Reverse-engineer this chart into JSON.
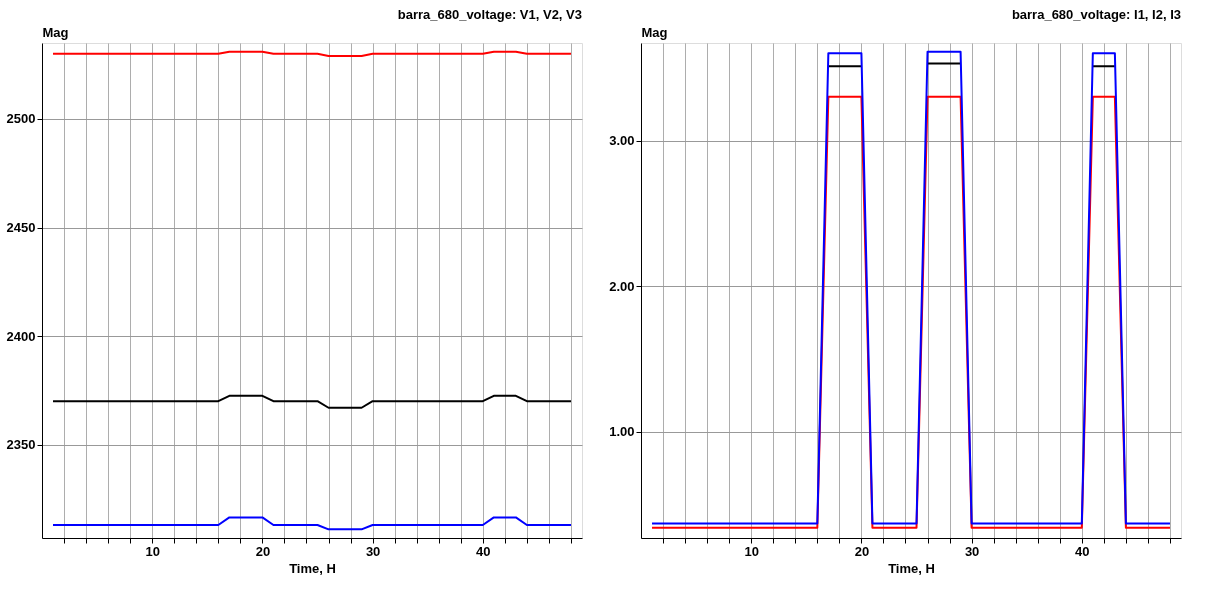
{
  "chart_data": [
    {
      "type": "line",
      "title": "barra_680_voltage:  V1,  V2,  V3",
      "ylabel": "Mag",
      "xlabel": "Time, H",
      "x": [
        1,
        16,
        17,
        20,
        21,
        25,
        26,
        29,
        30,
        40,
        41,
        43,
        44,
        48
      ],
      "series": [
        {
          "color": "#ff0000",
          "values": [
            2530,
            2530,
            2531,
            2531,
            2530,
            2530,
            2529,
            2529,
            2530,
            2530,
            2531,
            2531,
            2530,
            2530
          ]
        },
        {
          "color": "#000000",
          "values": [
            2370,
            2370,
            2372.5,
            2372.5,
            2370,
            2370,
            2367,
            2367,
            2370,
            2370,
            2372.5,
            2372.5,
            2370,
            2370
          ]
        },
        {
          "color": "#0000ff",
          "values": [
            2313,
            2313,
            2316.5,
            2316.5,
            2313,
            2313,
            2311,
            2311,
            2313,
            2313,
            2316.5,
            2316.5,
            2313,
            2313
          ]
        }
      ],
      "xlim": [
        0,
        49
      ],
      "ylim": [
        2307,
        2535
      ],
      "xticks": [
        {
          "value": 2,
          "label": null
        },
        {
          "value": 4,
          "label": null
        },
        {
          "value": 6,
          "label": null
        },
        {
          "value": 8,
          "label": null
        },
        10,
        {
          "value": 12,
          "label": null
        },
        {
          "value": 14,
          "label": null
        },
        {
          "value": 16,
          "label": null
        },
        {
          "value": 18,
          "label": null
        },
        20,
        {
          "value": 22,
          "label": null
        },
        {
          "value": 24,
          "label": null
        },
        {
          "value": 26,
          "label": null
        },
        {
          "value": 28,
          "label": null
        },
        30,
        {
          "value": 32,
          "label": null
        },
        {
          "value": 34,
          "label": null
        },
        {
          "value": 36,
          "label": null
        },
        {
          "value": 38,
          "label": null
        },
        40,
        {
          "value": 42,
          "label": null
        },
        {
          "value": 44,
          "label": null
        },
        {
          "value": 46,
          "label": null
        },
        {
          "value": 48,
          "label": null
        }
      ],
      "yticks": [
        2350,
        2400,
        2450,
        2500
      ],
      "grid": true
    },
    {
      "type": "line",
      "title": "barra_680_voltage:  I1,  I2,  I3",
      "ylabel": "Mag",
      "xlabel": "Time, H",
      "x": [
        1,
        16,
        17,
        20,
        21,
        25,
        26,
        29,
        30,
        40,
        41,
        43,
        44,
        48
      ],
      "series": [
        {
          "color": "#ff0000",
          "values": [
            0.34,
            0.34,
            3.3,
            3.3,
            0.34,
            0.34,
            3.3,
            3.3,
            0.34,
            0.34,
            3.3,
            3.3,
            0.34,
            0.34
          ]
        },
        {
          "color": "#000000",
          "values": [
            null,
            null,
            3.51,
            3.51,
            null,
            null,
            3.53,
            3.53,
            null,
            null,
            3.51,
            3.51,
            null,
            null
          ]
        },
        {
          "color": "#0000ff",
          "values": [
            0.37,
            0.37,
            3.6,
            3.6,
            0.37,
            0.37,
            3.61,
            3.61,
            0.37,
            0.37,
            3.6,
            3.6,
            0.37,
            0.37
          ]
        }
      ],
      "xlim": [
        0,
        49
      ],
      "ylim": [
        0.27,
        3.67
      ],
      "xticks": [
        {
          "value": 2,
          "label": null
        },
        {
          "value": 4,
          "label": null
        },
        {
          "value": 6,
          "label": null
        },
        {
          "value": 8,
          "label": null
        },
        10,
        {
          "value": 12,
          "label": null
        },
        {
          "value": 14,
          "label": null
        },
        {
          "value": 16,
          "label": null
        },
        {
          "value": 18,
          "label": null
        },
        20,
        {
          "value": 22,
          "label": null
        },
        {
          "value": 24,
          "label": null
        },
        {
          "value": 26,
          "label": null
        },
        {
          "value": 28,
          "label": null
        },
        30,
        {
          "value": 32,
          "label": null
        },
        {
          "value": 34,
          "label": null
        },
        {
          "value": 36,
          "label": null
        },
        {
          "value": 38,
          "label": null
        },
        40,
        {
          "value": 42,
          "label": null
        },
        {
          "value": 44,
          "label": null
        },
        {
          "value": 46,
          "label": null
        },
        {
          "value": 48,
          "label": null
        }
      ],
      "yticks": [
        {
          "value": 1,
          "label": "1.00"
        },
        {
          "value": 2,
          "label": "2.00"
        },
        {
          "value": 3,
          "label": "3.00"
        }
      ],
      "grid": true
    }
  ]
}
